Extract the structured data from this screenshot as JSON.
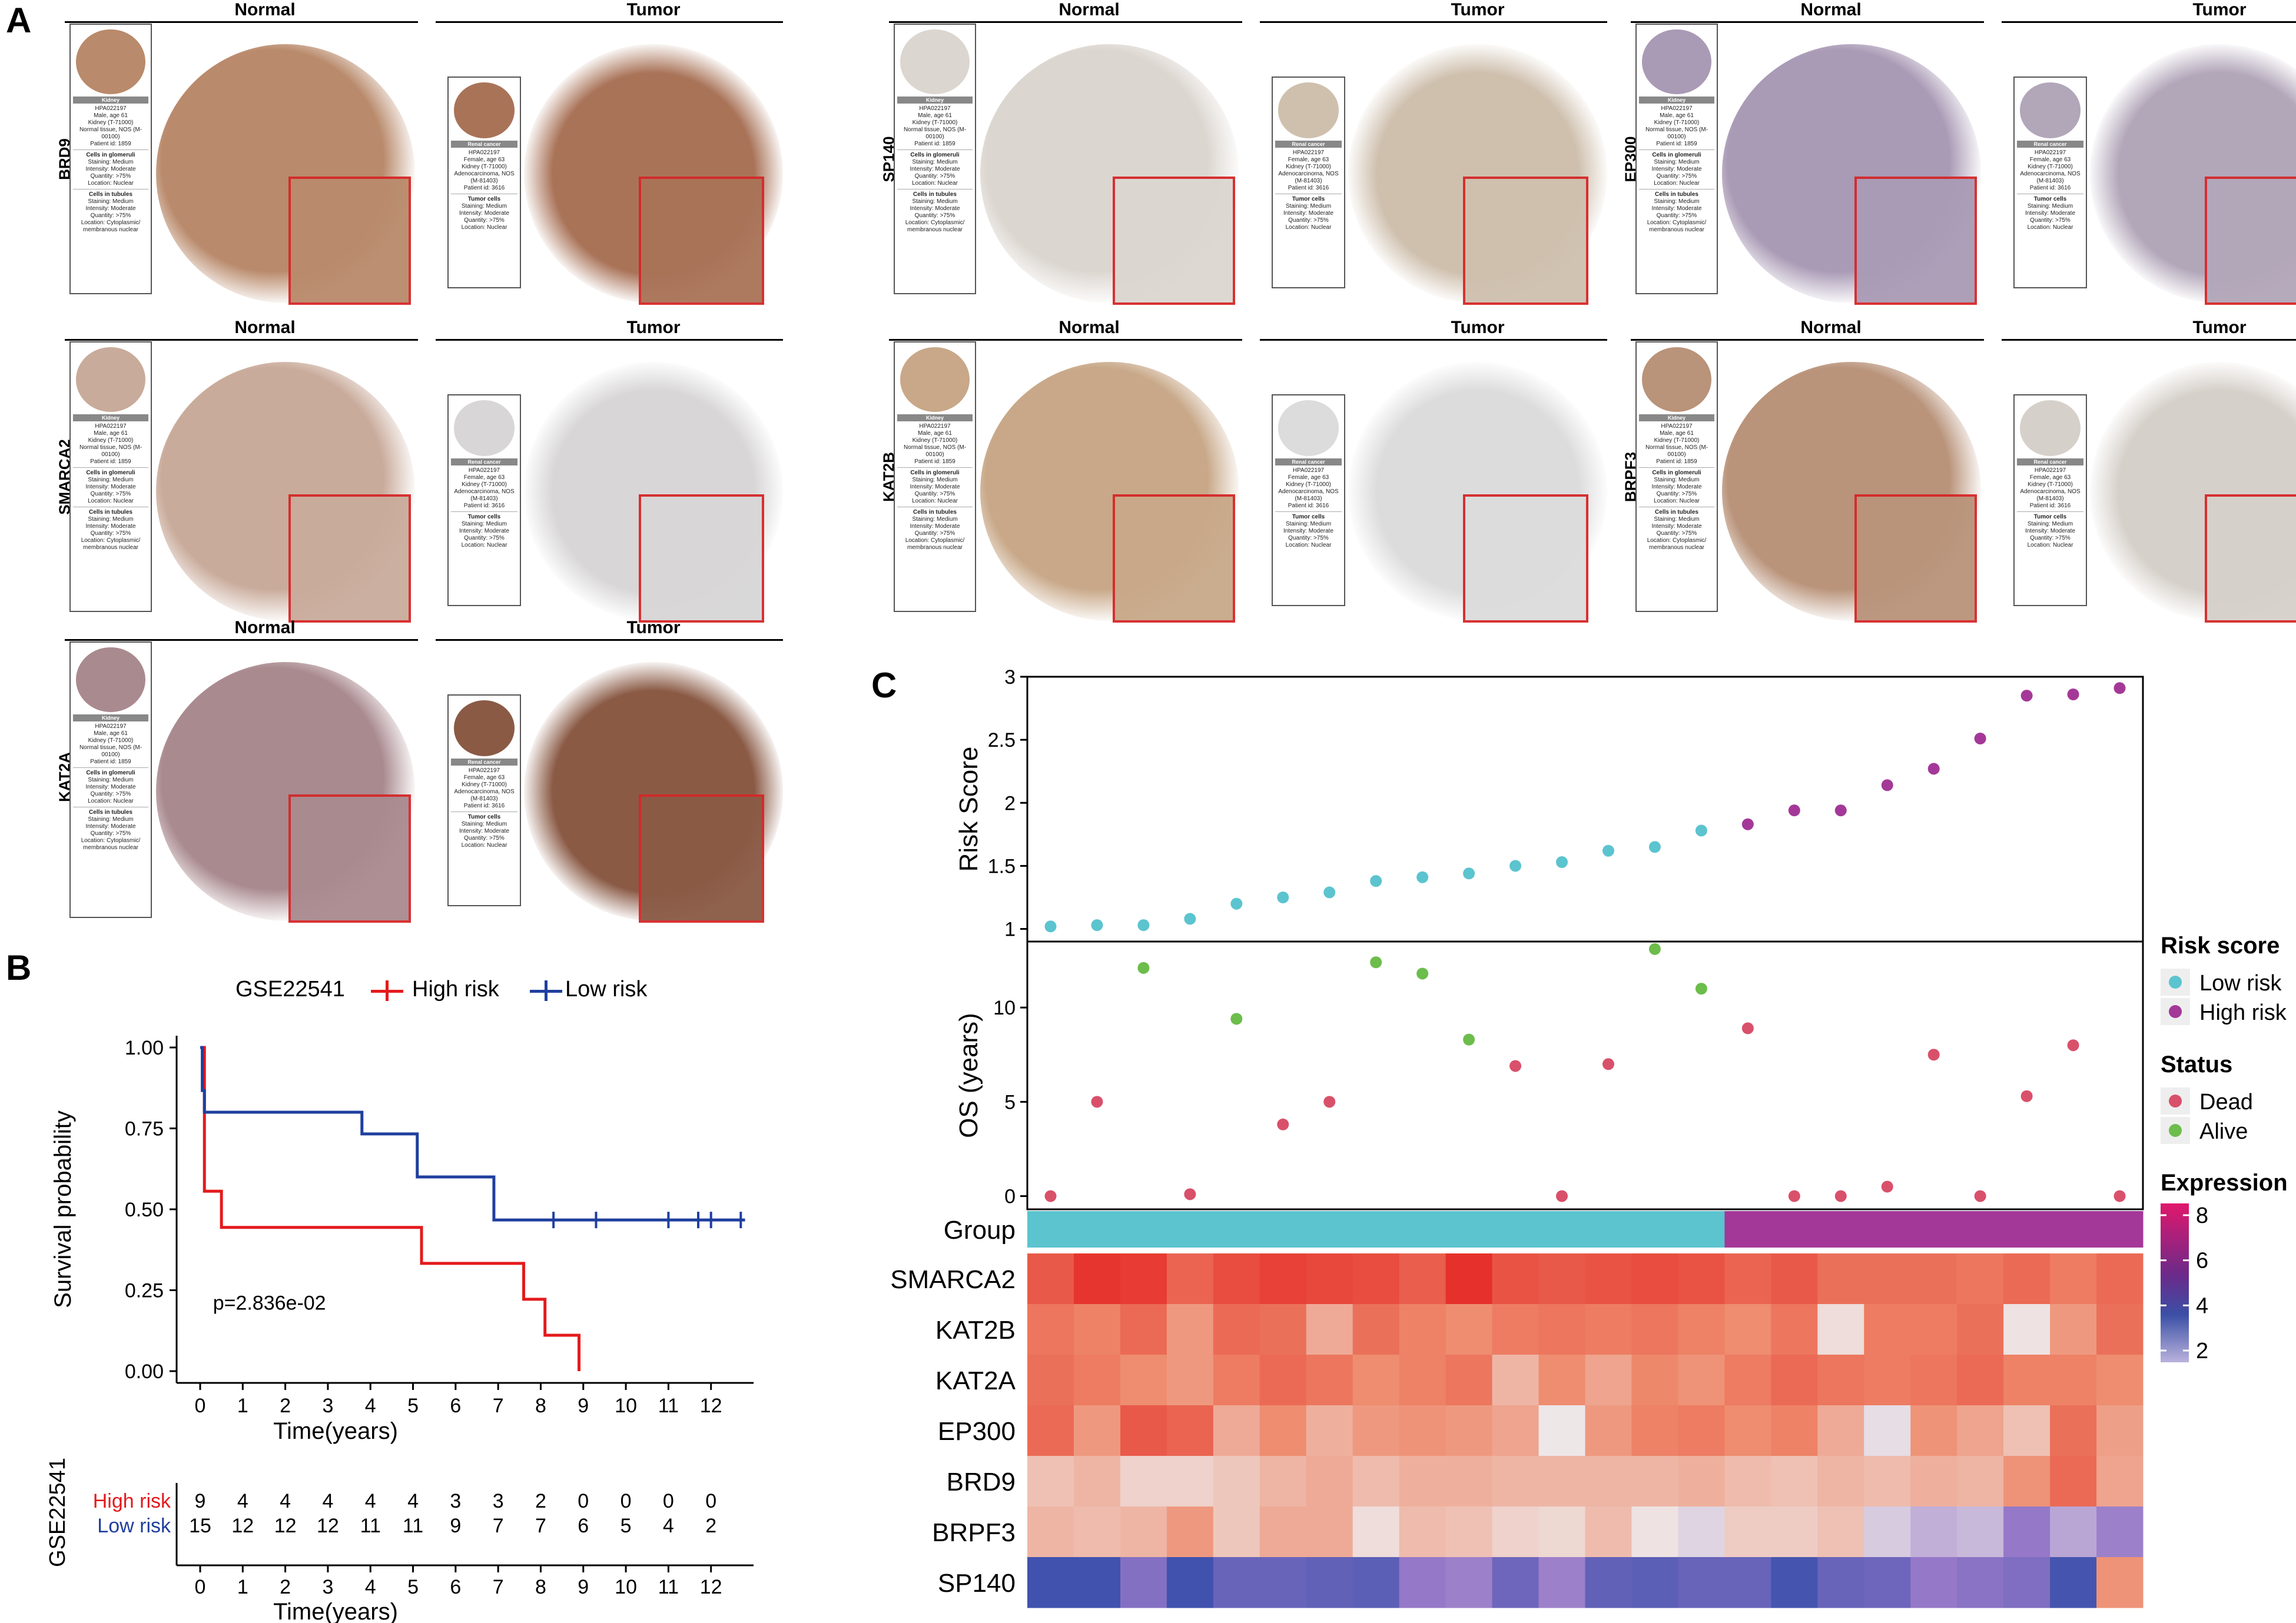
{
  "panels": {
    "A": "A",
    "B": "B",
    "C": "C"
  },
  "ihc": {
    "normal": "Normal",
    "tumor": "Tumor",
    "genes": [
      "BRD9",
      "SP140",
      "EP300",
      "SMARCA2",
      "KAT2B",
      "BRPF3",
      "KAT2A"
    ],
    "kidney_card": {
      "header": "Kidney",
      "lines": [
        "HPA022197",
        "Male, age 61",
        "Kidney (T-71000)",
        "Normal tissue, NOS (M-00100)",
        "Patient id: 1859"
      ],
      "glom_header": "Cells in glomeruli",
      "glom": [
        "Staining: Medium",
        "Intensity: Moderate",
        "Quantity: >75%",
        "Location: Nuclear"
      ],
      "tub_header": "Cells in tubules",
      "tub": [
        "Staining: Medium",
        "Intensity: Moderate",
        "Quantity: >75%",
        "Location: Cytoplasmic/ membranous nuclear"
      ]
    },
    "cancer_card": {
      "header": "Renal cancer",
      "lines": [
        "HPA022197",
        "Female, age 63",
        "Kidney (T-71000)",
        "Adenocarcinoma, NOS (M-81403)",
        "Patient id: 3616"
      ],
      "tumor_header": "Tumor cells",
      "tumor": [
        "Staining: Medium",
        "Intensity: Moderate",
        "Quantity: >75%",
        "Location: Nuclear"
      ]
    }
  },
  "km": {
    "legend_title": "GSE22541",
    "high_label": "High risk",
    "low_label": "Low risk",
    "ylabel": "Survival probability",
    "xlabel": "Time(years)",
    "pvalue": "p=2.836e-02",
    "yticks": [
      "0.00",
      "0.25",
      "0.50",
      "0.75",
      "1.00"
    ],
    "xticks": [
      "0",
      "1",
      "2",
      "3",
      "4",
      "5",
      "6",
      "7",
      "8",
      "9",
      "10",
      "11",
      "12"
    ],
    "risk_table": {
      "ylabel": "GSE22541",
      "high_label": "High risk",
      "low_label": "Low risk",
      "high": [
        "9",
        "4",
        "4",
        "4",
        "4",
        "4",
        "3",
        "3",
        "2",
        "0",
        "0",
        "0",
        "0"
      ],
      "low": [
        "15",
        "12",
        "12",
        "12",
        "11",
        "11",
        "9",
        "7",
        "7",
        "6",
        "5",
        "4",
        "2"
      ],
      "xlabel": "Time(years)"
    },
    "colors": {
      "high": "#e41a1c",
      "low": "#1f3f9e"
    }
  },
  "chart_data": [
    {
      "type": "line",
      "title": "GSE22541",
      "xlabel": "Time(years)",
      "ylabel": "Survival probability",
      "xlim": [
        0,
        13
      ],
      "ylim": [
        0,
        1
      ],
      "series": [
        {
          "name": "High risk",
          "x": [
            0,
            0.1,
            0.5,
            5.2,
            7.6,
            8.1,
            8.9
          ],
          "y": [
            1.0,
            0.556,
            0.444,
            0.333,
            0.222,
            0.111,
            0.0
          ]
        },
        {
          "name": "Low risk",
          "x": [
            0,
            0.05,
            0.1,
            3.8,
            5.1,
            6.9
          ],
          "y": [
            1.0,
            0.867,
            0.8,
            0.733,
            0.6,
            0.467
          ]
        }
      ],
      "censor_low_x": [
        8.3,
        9.3,
        11.0,
        11.7,
        12.0,
        12.7
      ],
      "annotation": "p=2.836e-02"
    },
    {
      "type": "scatter",
      "ylabel": "Risk Score",
      "ylim": [
        0.9,
        3.0
      ],
      "yticks": [
        "1",
        "1.5",
        "2",
        "2.5",
        "3"
      ],
      "values": [
        1.02,
        1.03,
        1.03,
        1.08,
        1.2,
        1.25,
        1.29,
        1.38,
        1.41,
        1.44,
        1.5,
        1.53,
        1.62,
        1.65,
        1.78,
        1.83,
        1.94,
        1.94,
        2.14,
        2.27,
        2.51,
        2.85,
        2.86,
        2.91
      ],
      "group": [
        "Low",
        "Low",
        "Low",
        "Low",
        "Low",
        "Low",
        "Low",
        "Low",
        "Low",
        "Low",
        "Low",
        "Low",
        "Low",
        "Low",
        "Low",
        "High",
        "High",
        "High",
        "High",
        "High",
        "High",
        "High",
        "High",
        "High"
      ]
    },
    {
      "type": "scatter",
      "ylabel": "OS (years)",
      "ylim": [
        -0.7,
        13.5
      ],
      "yticks": [
        "0",
        "5",
        "10"
      ],
      "values": [
        0,
        5.0,
        12.1,
        0.1,
        9.4,
        3.8,
        5.0,
        12.4,
        11.8,
        8.3,
        6.9,
        0,
        7.0,
        13.1,
        11.0,
        8.9,
        0,
        0,
        0.5,
        7.5,
        0,
        5.3,
        8.0,
        0
      ],
      "status": [
        "Dead",
        "Dead",
        "Alive",
        "Dead",
        "Alive",
        "Dead",
        "Dead",
        "Alive",
        "Alive",
        "Alive",
        "Dead",
        "Dead",
        "Dead",
        "Alive",
        "Alive",
        "Dead",
        "Dead",
        "Dead",
        "Dead",
        "Dead",
        "Dead",
        "Dead",
        "Dead",
        "Dead"
      ]
    },
    {
      "type": "heatmap",
      "group_label": "Group",
      "rows": [
        "SMARCA2",
        "KAT2B",
        "KAT2A",
        "EP300",
        "BRD9",
        "BRPF3",
        "SP140"
      ],
      "values": [
        [
          7.2,
          7.8,
          7.7,
          7.0,
          7.4,
          7.6,
          7.5,
          7.4,
          7.1,
          7.9,
          7.3,
          7.2,
          7.3,
          7.4,
          7.3,
          7.0,
          7.2,
          6.8,
          6.8,
          6.8,
          6.7,
          6.9,
          6.6,
          6.9
        ],
        [
          6.7,
          6.5,
          6.9,
          6.1,
          6.9,
          6.8,
          5.8,
          6.8,
          6.5,
          6.3,
          6.6,
          6.7,
          6.6,
          6.7,
          6.5,
          6.3,
          6.7,
          4.9,
          6.6,
          6.6,
          6.8,
          4.8,
          6.1,
          6.8
        ],
        [
          6.8,
          6.6,
          6.3,
          6.1,
          6.6,
          6.9,
          6.7,
          6.3,
          6.5,
          6.7,
          5.6,
          6.3,
          5.9,
          6.4,
          6.2,
          6.6,
          6.9,
          6.7,
          6.6,
          6.7,
          6.9,
          6.5,
          6.5,
          6.3
        ],
        [
          6.9,
          6.1,
          7.2,
          7.0,
          5.8,
          6.3,
          5.7,
          6.1,
          6.2,
          6.1,
          5.9,
          4.7,
          6.1,
          6.5,
          6.6,
          6.3,
          6.5,
          5.8,
          4.6,
          6.2,
          5.9,
          5.4,
          6.8,
          6.0
        ],
        [
          5.4,
          5.6,
          5.1,
          5.1,
          5.3,
          5.6,
          5.8,
          5.5,
          5.7,
          5.7,
          5.6,
          5.6,
          5.6,
          5.6,
          5.7,
          5.5,
          5.4,
          5.6,
          5.5,
          5.7,
          5.6,
          6.2,
          6.9,
          5.9
        ],
        [
          5.6,
          5.5,
          5.6,
          6.1,
          5.3,
          5.8,
          5.8,
          4.9,
          5.5,
          5.4,
          5.1,
          5.0,
          5.5,
          4.8,
          4.5,
          5.2,
          5.2,
          5.4,
          4.4,
          4.1,
          4.2,
          3.5,
          4.0,
          3.6
        ],
        [
          2.0,
          2.0,
          3.2,
          2.0,
          2.7,
          2.7,
          2.6,
          2.5,
          3.5,
          3.6,
          2.8,
          3.6,
          2.6,
          2.5,
          2.7,
          2.7,
          2.1,
          2.7,
          2.8,
          3.5,
          3.3,
          3.1,
          2.1,
          6.2
        ]
      ],
      "range": [
        1.5,
        8.2
      ]
    }
  ],
  "legend": {
    "risk_title": "Risk score",
    "low": "Low risk",
    "high": "High risk",
    "status_title": "Status",
    "dead": "Dead",
    "alive": "Alive",
    "expr_title": "Expression",
    "expr_ticks": [
      "8",
      "6",
      "4",
      "2"
    ]
  },
  "colors": {
    "low_risk": "#5bc4cf",
    "high_risk": "#a43898",
    "dead": "#d9506a",
    "alive": "#6cbd4b"
  }
}
